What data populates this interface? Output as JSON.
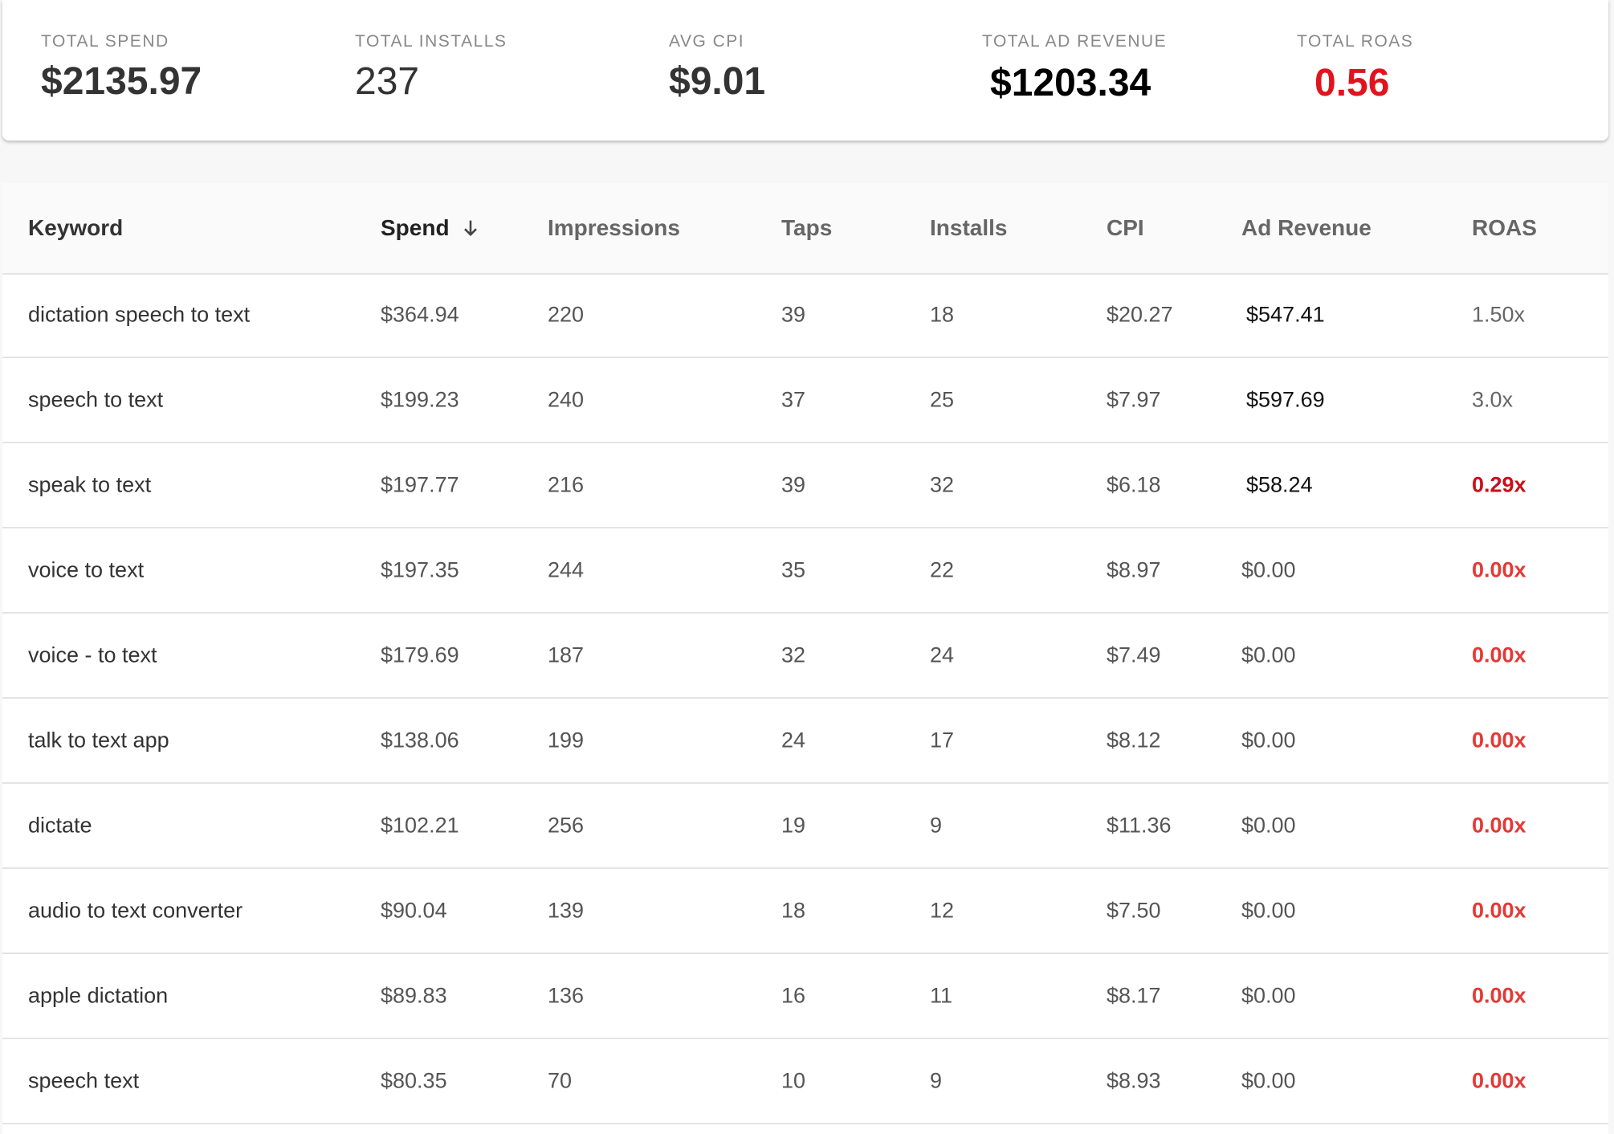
{
  "summary": {
    "items": [
      {
        "label": "TOTAL SPEND",
        "value": "$2135.97"
      },
      {
        "label": "TOTAL INSTALLS",
        "value": "237"
      },
      {
        "label": "AVG CPI",
        "value": "$9.01"
      },
      {
        "label": "TOTAL AD REVENUE",
        "value": "$1203.34"
      },
      {
        "label": "TOTAL ROAS",
        "value": "0.56"
      }
    ]
  },
  "table": {
    "headers": [
      "Keyword",
      "Spend",
      "Impressions",
      "Taps",
      "Installs",
      "CPI",
      "Ad Revenue",
      "ROAS"
    ],
    "rows": [
      [
        "dictation speech to text",
        "$364.94",
        "220",
        "39",
        "18",
        "$20.27",
        "$547.41",
        "1.50x"
      ],
      [
        "speech to text",
        "$199.23",
        "240",
        "37",
        "25",
        "$7.97",
        "$597.69",
        "3.0x"
      ],
      [
        "speak to text",
        "$197.77",
        "216",
        "39",
        "32",
        "$6.18",
        "$58.24",
        "0.29x"
      ],
      [
        "voice to text",
        "$197.35",
        "244",
        "35",
        "22",
        "$8.97",
        "$0.00",
        "0.00x"
      ],
      [
        "voice - to text",
        "$179.69",
        "187",
        "32",
        "24",
        "$7.49",
        "$0.00",
        "0.00x"
      ],
      [
        "talk to text app",
        "$138.06",
        "199",
        "24",
        "17",
        "$8.12",
        "$0.00",
        "0.00x"
      ],
      [
        "dictate",
        "$102.21",
        "256",
        "19",
        "9",
        "$11.36",
        "$0.00",
        "0.00x"
      ],
      [
        "audio to text converter",
        "$90.04",
        "139",
        "18",
        "12",
        "$7.50",
        "$0.00",
        "0.00x"
      ],
      [
        "apple dictation",
        "$89.83",
        "136",
        "16",
        "11",
        "$8.17",
        "$0.00",
        "0.00x"
      ],
      [
        "speech text",
        "$80.35",
        "70",
        "10",
        "9",
        "$8.93",
        "$0.00",
        "0.00x"
      ]
    ]
  }
}
